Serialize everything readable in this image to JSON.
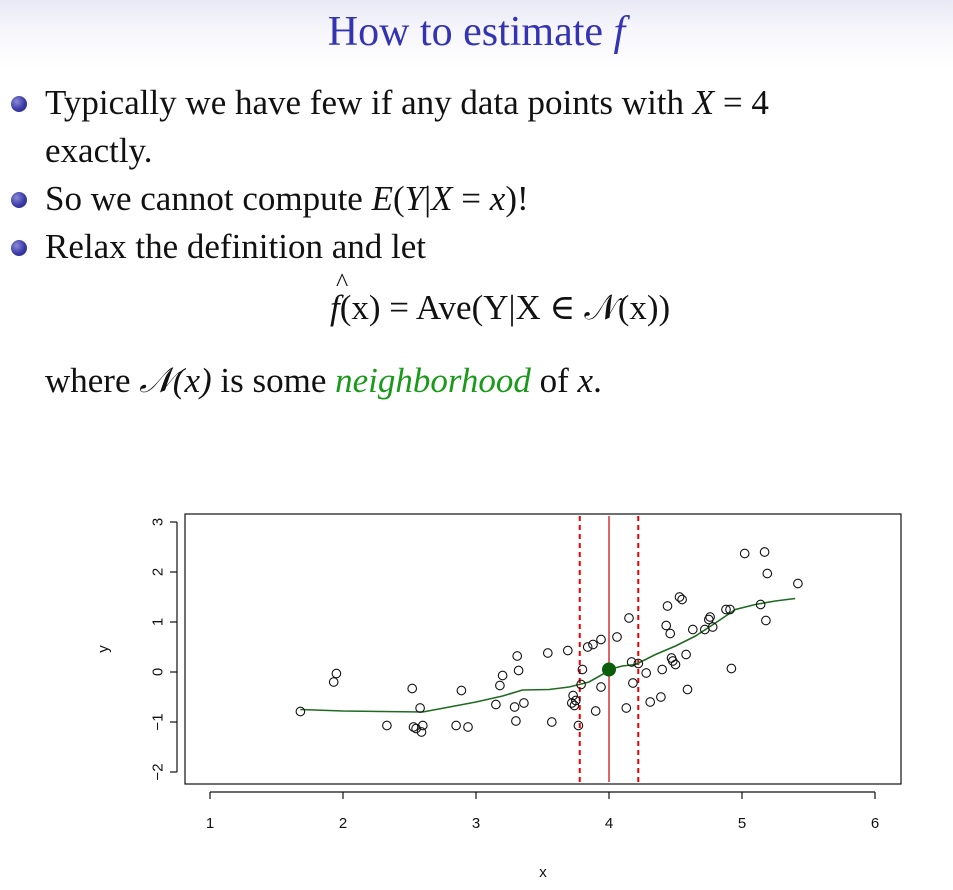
{
  "slide": {
    "title_prefix": "How to estimate ",
    "title_var": "f",
    "bullet1_line1_a": "Typically we have few if any data points with ",
    "bullet1_line1_math": "X",
    "bullet1_line1_b": " = 4",
    "bullet1_line2": "exactly.",
    "bullet2_a": "So we cannot compute ",
    "bullet2_math_E": "E",
    "bullet2_math_open": "(",
    "bullet2_math_Y": "Y",
    "bullet2_math_bar": "|",
    "bullet2_math_X": "X",
    "bullet2_math_eq": " = ",
    "bullet2_math_x": "x",
    "bullet2_math_close": ")",
    "bullet2_b": "!",
    "bullet3": "Relax the definition and let",
    "formula_f": "f",
    "formula_lhs_rest": "(x) = Ave(Y|X ∈ 𝒩(x))",
    "where_a": "where ",
    "where_N": "𝒩(x)",
    "where_b": " is some ",
    "where_green": "neighborhood",
    "where_c": " of ",
    "where_x": "x",
    "where_end": "."
  },
  "chart_data": {
    "type": "scatter",
    "xlabel": "x",
    "ylabel": "y",
    "xlim": [
      1,
      6
    ],
    "ylim": [
      -2,
      3
    ],
    "xticks": [
      "1",
      "2",
      "3",
      "4",
      "5",
      "6"
    ],
    "yticks": [
      "−2",
      "−1",
      "0",
      "1",
      "2",
      "3"
    ],
    "points": [
      [
        1.68,
        -0.79
      ],
      [
        1.93,
        -0.2
      ],
      [
        1.95,
        -0.03
      ],
      [
        2.33,
        -1.07
      ],
      [
        2.52,
        -0.33
      ],
      [
        2.53,
        -1.1
      ],
      [
        2.55,
        -1.13
      ],
      [
        2.58,
        -0.72
      ],
      [
        2.6,
        -1.07
      ],
      [
        2.59,
        -1.2
      ],
      [
        2.85,
        -1.07
      ],
      [
        2.89,
        -0.37
      ],
      [
        2.94,
        -1.1
      ],
      [
        3.15,
        -0.65
      ],
      [
        3.18,
        -0.27
      ],
      [
        3.2,
        -0.07
      ],
      [
        3.29,
        -0.7
      ],
      [
        3.3,
        -0.98
      ],
      [
        3.31,
        0.32
      ],
      [
        3.32,
        0.03
      ],
      [
        3.36,
        -0.62
      ],
      [
        3.54,
        0.38
      ],
      [
        3.57,
        -1.0
      ],
      [
        3.69,
        0.43
      ],
      [
        3.72,
        -0.62
      ],
      [
        3.73,
        -0.47
      ],
      [
        3.74,
        -0.67
      ],
      [
        3.75,
        -0.57
      ],
      [
        3.77,
        -1.07
      ],
      [
        3.79,
        -0.25
      ],
      [
        3.8,
        0.05
      ],
      [
        3.84,
        0.5
      ],
      [
        3.88,
        0.55
      ],
      [
        3.9,
        -0.78
      ],
      [
        3.94,
        0.65
      ],
      [
        3.94,
        -0.3
      ],
      [
        4.06,
        0.7
      ],
      [
        4.15,
        1.08
      ],
      [
        4.13,
        -0.72
      ],
      [
        4.17,
        0.2
      ],
      [
        4.18,
        -0.22
      ],
      [
        4.22,
        0.17
      ],
      [
        4.28,
        -0.02
      ],
      [
        4.31,
        -0.6
      ],
      [
        4.39,
        -0.5
      ],
      [
        4.4,
        0.05
      ],
      [
        4.43,
        0.93
      ],
      [
        4.44,
        1.32
      ],
      [
        4.46,
        0.77
      ],
      [
        4.47,
        0.28
      ],
      [
        4.48,
        0.22
      ],
      [
        4.5,
        0.15
      ],
      [
        4.53,
        1.5
      ],
      [
        4.55,
        1.45
      ],
      [
        4.58,
        0.35
      ],
      [
        4.59,
        -0.35
      ],
      [
        4.63,
        0.85
      ],
      [
        4.72,
        0.85
      ],
      [
        4.75,
        1.05
      ],
      [
        4.76,
        1.1
      ],
      [
        4.78,
        0.9
      ],
      [
        4.88,
        1.25
      ],
      [
        4.91,
        1.25
      ],
      [
        4.92,
        0.07
      ],
      [
        5.02,
        2.37
      ],
      [
        5.14,
        1.35
      ],
      [
        5.17,
        2.4
      ],
      [
        5.18,
        1.03
      ],
      [
        5.19,
        1.97
      ],
      [
        5.42,
        1.77
      ]
    ],
    "smooth_curve": [
      [
        1.68,
        -0.75
      ],
      [
        2.0,
        -0.78
      ],
      [
        2.3,
        -0.79
      ],
      [
        2.6,
        -0.8
      ],
      [
        2.8,
        -0.7
      ],
      [
        3.0,
        -0.6
      ],
      [
        3.2,
        -0.48
      ],
      [
        3.35,
        -0.36
      ],
      [
        3.55,
        -0.35
      ],
      [
        3.7,
        -0.3
      ],
      [
        3.85,
        -0.2
      ],
      [
        3.95,
        -0.05
      ],
      [
        4.0,
        0.05
      ],
      [
        4.1,
        0.12
      ],
      [
        4.2,
        0.15
      ],
      [
        4.35,
        0.35
      ],
      [
        4.5,
        0.52
      ],
      [
        4.65,
        0.72
      ],
      [
        4.8,
        0.98
      ],
      [
        4.95,
        1.25
      ],
      [
        5.1,
        1.35
      ],
      [
        5.25,
        1.42
      ],
      [
        5.4,
        1.47
      ]
    ],
    "highlight_point": [
      4.0,
      0.05
    ],
    "center_line_x": 4.0,
    "neighborhood_bounds": [
      3.78,
      4.22
    ],
    "colors": {
      "curve": "#1f6b1f",
      "highlight": "#0b5e0b",
      "neighborhood": "#ee0000",
      "center_line": "#c80000",
      "points": "#111111"
    }
  }
}
